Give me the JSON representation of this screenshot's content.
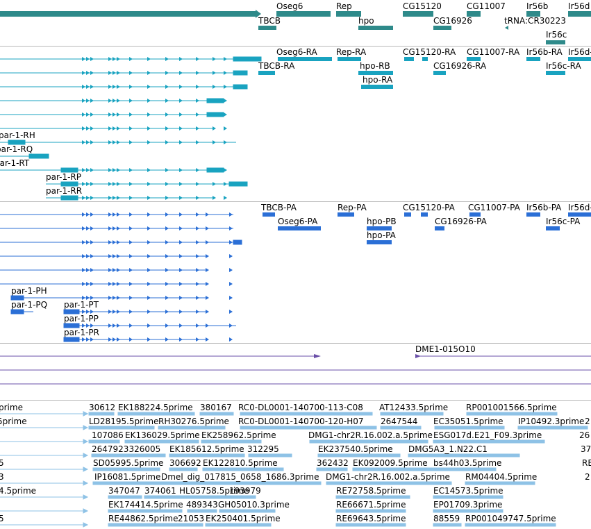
{
  "palette": {
    "gene": "#2e8a8a",
    "transcript": "#19a3c0",
    "protein": "#2b6fd6",
    "alignment": "#6a4fa8",
    "est": "#8ec2e6",
    "separator": "#b8b8b8"
  },
  "gene_track": {
    "labels": [
      "Oseg6",
      "Rep",
      "CG15120",
      "CG11007",
      "Ir56b",
      "Ir56d",
      "TBCB",
      "hpo",
      "CG16926",
      "tRNA:CR30223",
      "Ir56c"
    ]
  },
  "transcript_track": {
    "labels": [
      "Oseg6-RA",
      "Rep-RA",
      "CG15120-RA",
      "CG11007-RA",
      "Ir56b-RA",
      "Ir56d-",
      "TBCB-RA",
      "hpo-RB",
      "CG16926-RA",
      "Ir56c-RA",
      "hpo-RA",
      "par-1-RH",
      "par-1-RQ",
      "par-1-RT",
      "par-1-RP",
      "par-1-RR"
    ]
  },
  "protein_track": {
    "labels": [
      "TBCB-PA",
      "Rep-PA",
      "CG15120-PA",
      "CG11007-PA",
      "Ir56b-PA",
      "Ir56d-",
      "Oseg6-PA",
      "CG16926-PA",
      "hpo-PB",
      "Ir56c-PA",
      "hpo-PA",
      "par-1-PH",
      "par-1-PQ",
      "par-1-PT",
      "par-1-PP",
      "par-1-PR"
    ]
  },
  "alignment_track": {
    "labels": [
      "DME1-015O10"
    ]
  },
  "est_track": {
    "labels": [
      "prime",
      "30612",
      "EK188224.5prime",
      "380167",
      "RC0-DL0001-140700-113-C08",
      "AT12433.5prime",
      "RP001001566.5prime",
      "5prime",
      "LD28195.5prime",
      "RH30276.5prime",
      "RC0-DL0001-140700-120-H07",
      "2647544",
      "EC35051.5prime",
      "IP10492.3prime",
      "2",
      "107086",
      "EK136029.5prime",
      "EK258962.5prime",
      "DMG1-chr2R.16.002.a.5prime",
      "ESG017d.E21_F09.3prime",
      "26",
      "2647923326005",
      "EK185612.5prime",
      "312295",
      "EK237540.5prime",
      "DMG5A3_1.N22.C1",
      "37",
      "5",
      "SD05995.5prime",
      "306692",
      "EK122810.5prime",
      "362432",
      "EK092009.5prime",
      "bs44h03.5prime",
      "RE",
      "3",
      "IP16081.5prime",
      "Dmel_dig_017815_0658_1686.3prime",
      "DMG1-chr2R.16.002.a.5prime",
      "RM04404.5prime",
      "2",
      "4.5prime",
      "347047",
      "374061",
      "HL05758.5prime",
      "193979",
      "RE72758.5prime",
      "EC14573.5prime",
      "EK174414.5prime",
      "489343",
      "GH05010.3prime",
      "RE66671.5prime",
      "EP01709.3prime",
      "5",
      "RE44862.5prime",
      "21053",
      "EK250401.5prime",
      "RE69643.5prime",
      "88559",
      "RP001049747.5prime"
    ]
  }
}
